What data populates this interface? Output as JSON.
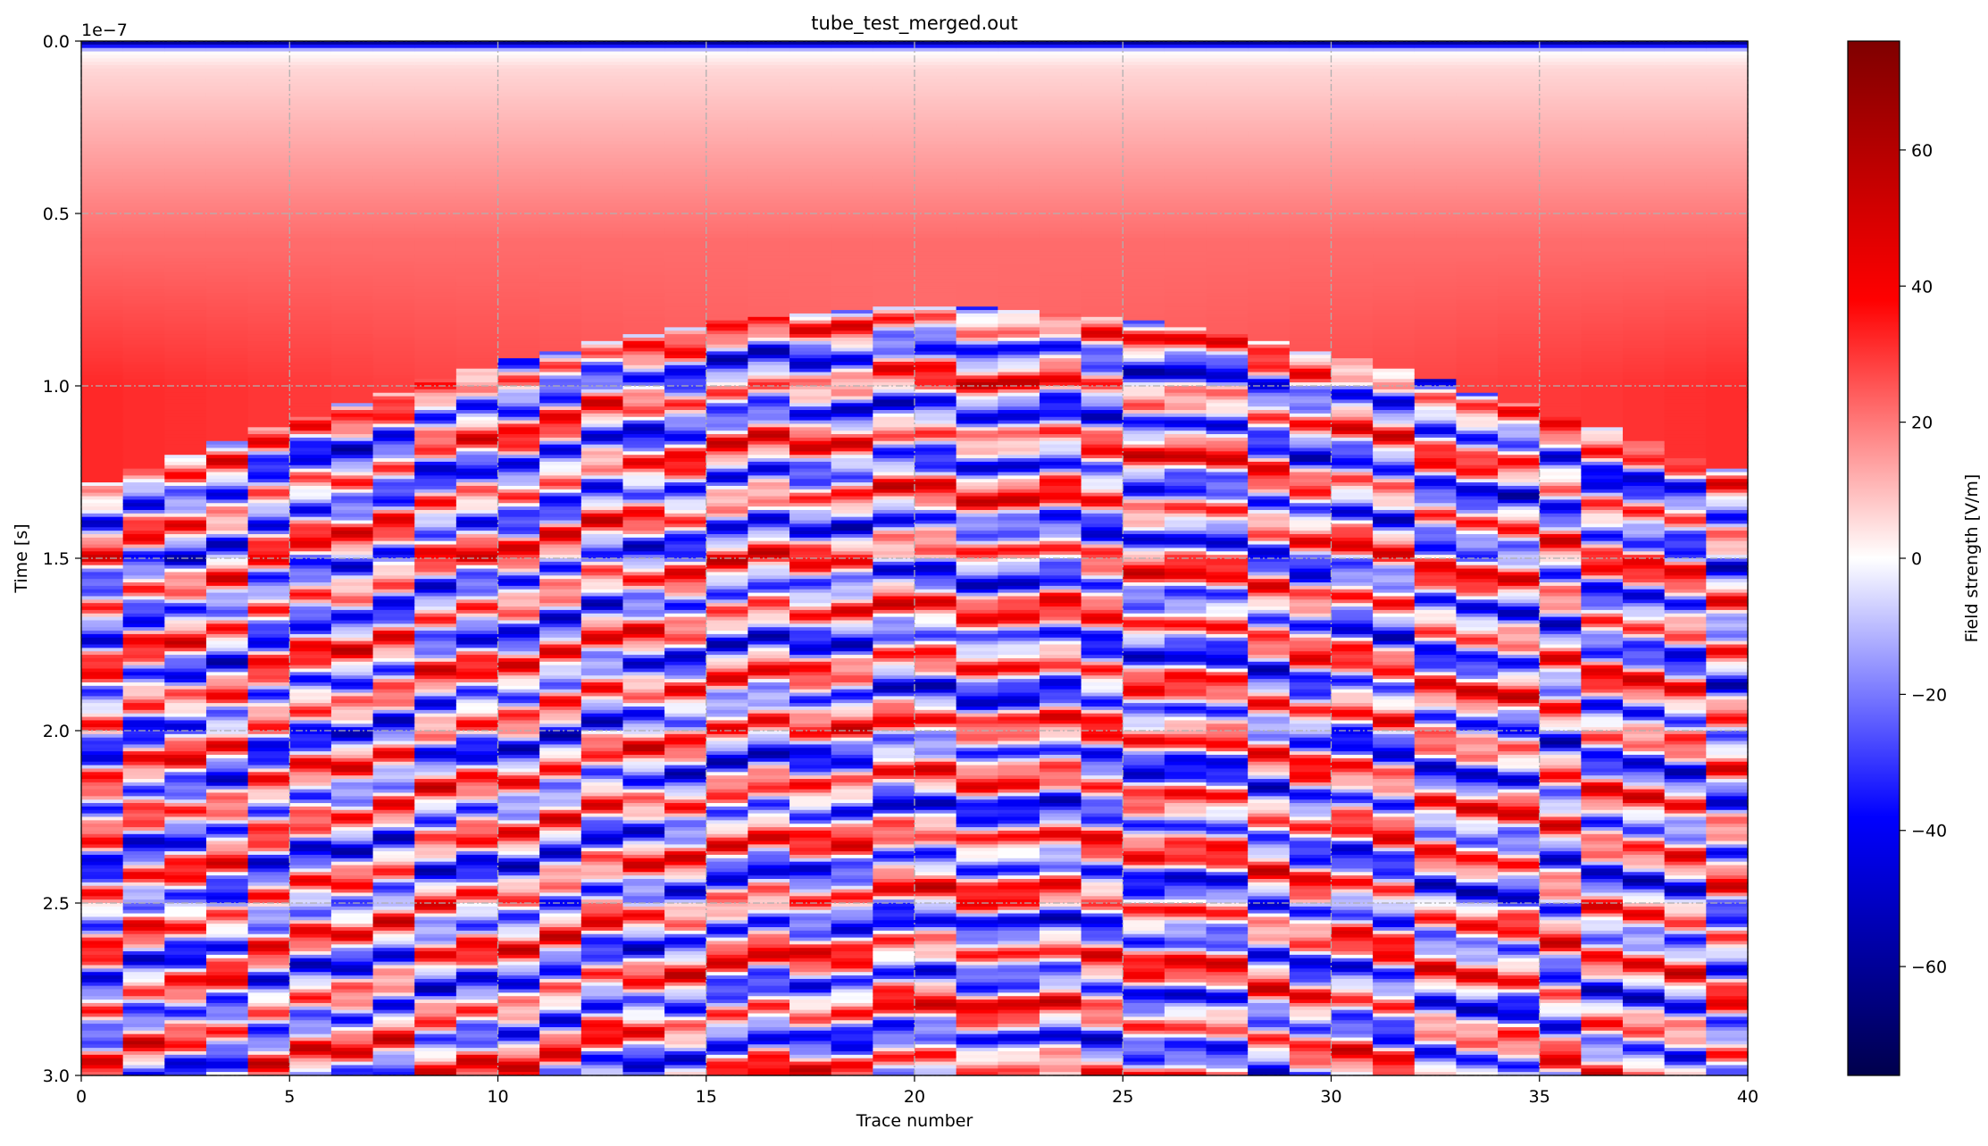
{
  "figure": {
    "title": "tube_test_merged.out"
  },
  "chart_data": {
    "type": "heatmap",
    "title": "tube_test_merged.out",
    "xlabel": "Trace number",
    "ylabel": "Time [s]",
    "y_offset_label": "1e−7",
    "xlim": [
      0,
      40
    ],
    "ylim": [
      3e-07,
      0.0
    ],
    "y_inverted": true,
    "x_ticks": [
      0,
      5,
      10,
      15,
      20,
      25,
      30,
      35,
      40
    ],
    "x_tick_labels": [
      "0",
      "5",
      "10",
      "15",
      "20",
      "25",
      "30",
      "35",
      "40"
    ],
    "y_ticks": [
      0.0,
      5e-08,
      1e-07,
      1.5e-07,
      2e-07,
      2.5e-07,
      3e-07
    ],
    "y_tick_labels": [
      "0.0",
      "0.5",
      "1.0",
      "1.5",
      "2.0",
      "2.5",
      "3.0"
    ],
    "grid": true,
    "colormap": "seismic",
    "colorbar": {
      "label": "Field strength [V/m]",
      "vmin": -76,
      "vmax": 76,
      "ticks": [
        60,
        40,
        20,
        0,
        -20,
        -40,
        -60
      ],
      "tick_labels": [
        "60",
        "40",
        "20",
        "0",
        "−20",
        "−40",
        "−60"
      ]
    },
    "n_traces": 40,
    "wavefield": {
      "direct_wave_time": 2e-09,
      "apex_trace": 20.5,
      "apex_time": 7.7e-08,
      "hyperbola_velocity_traces_per_time": 100000000.0,
      "background_value": 22
    }
  }
}
